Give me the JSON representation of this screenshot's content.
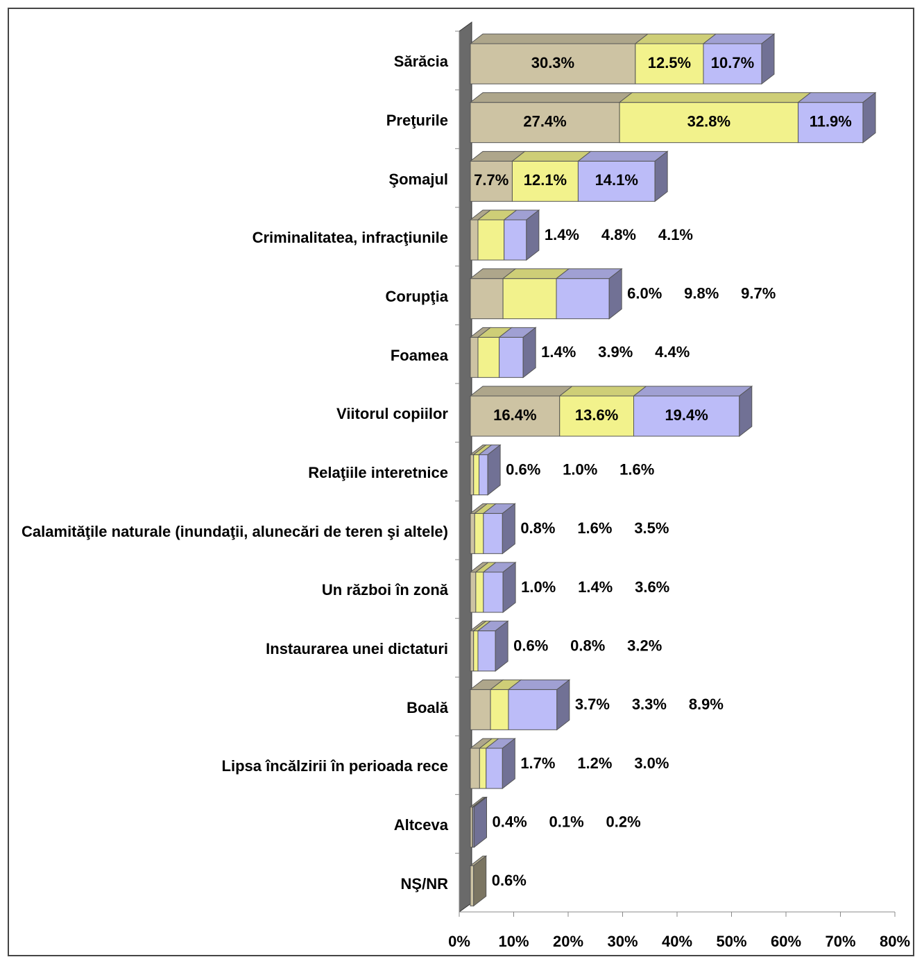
{
  "chart_data": {
    "type": "bar3d_stacked_horizontal",
    "categories": [
      "Sărăcia",
      "Preţurile",
      "Şomajul",
      "Criminalitatea, infracţiunile",
      "Corupţia",
      "Foamea",
      "Viitorul copiilor",
      "Relaţiile interetnice",
      "Calamităţile naturale (inundaţii, alunecări de teren şi altele)",
      "Un război în zonă",
      "Instaurarea unei dictaturi",
      "Boală",
      "Lipsa încălzirii în perioada rece",
      "Altceva",
      "NŞ/NR"
    ],
    "series": [
      {
        "color": "#cdc3a3",
        "values": [
          30.3,
          27.4,
          7.7,
          1.4,
          6.0,
          1.4,
          16.4,
          0.6,
          0.8,
          1.0,
          0.6,
          3.7,
          1.7,
          0.4,
          0.6
        ],
        "value_labels": [
          "30.3%",
          "27.4%",
          "7.7%",
          "1.4%",
          "6.0%",
          "1.4%",
          "16.4%",
          "0.6%",
          "0.8%",
          "1.0%",
          "0.6%",
          "3.7%",
          "1.7%",
          "0.4%",
          "0.6%"
        ]
      },
      {
        "color": "#f2f28c",
        "values": [
          12.5,
          32.8,
          12.1,
          4.8,
          9.8,
          3.9,
          13.6,
          1.0,
          1.6,
          1.4,
          0.8,
          3.3,
          1.2,
          0.1,
          null
        ],
        "value_labels": [
          "12.5%",
          "32.8%",
          "12.1%",
          "4.8%",
          "9.8%",
          "3.9%",
          "13.6%",
          "1.0%",
          "1.6%",
          "1.4%",
          "0.8%",
          "3.3%",
          "1.2%",
          "0.1%",
          null
        ]
      },
      {
        "color": "#bcbcf8",
        "values": [
          10.7,
          11.9,
          14.1,
          4.1,
          9.7,
          4.4,
          19.4,
          1.6,
          3.5,
          3.6,
          3.2,
          8.9,
          3.0,
          0.2,
          null
        ],
        "value_labels": [
          "10.7%",
          "11.9%",
          "14.1%",
          "4.1%",
          "9.7%",
          "4.4%",
          "19.4%",
          "1.6%",
          "3.5%",
          "3.6%",
          "3.2%",
          "8.9%",
          "3.0%",
          "0.2%",
          null
        ]
      }
    ],
    "xlim": [
      0,
      80
    ],
    "xticks": [
      {
        "value": 0,
        "label": "0%"
      },
      {
        "value": 10,
        "label": "10%"
      },
      {
        "value": 20,
        "label": "20%"
      },
      {
        "value": 30,
        "label": "30%"
      },
      {
        "value": 40,
        "label": "40%"
      },
      {
        "value": 50,
        "label": "50%"
      },
      {
        "value": 60,
        "label": "60%"
      },
      {
        "value": 70,
        "label": "70%"
      },
      {
        "value": 80,
        "label": "80%"
      }
    ]
  }
}
